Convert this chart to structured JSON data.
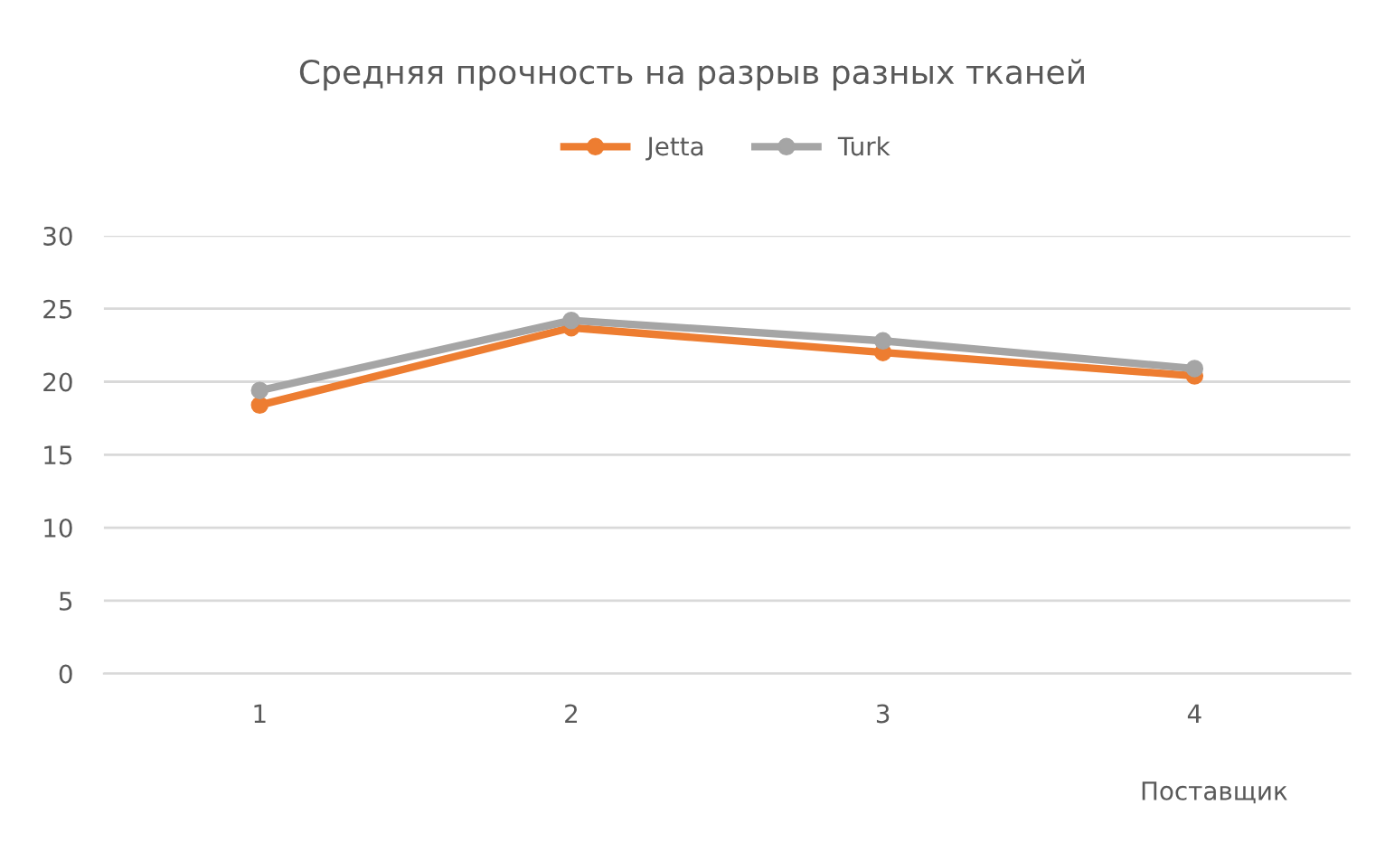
{
  "chart_data": {
    "type": "line",
    "title": "Средняя прочность на разрыв разных тканей",
    "xlabel": "Поставщик",
    "categories": [
      "1",
      "2",
      "3",
      "4"
    ],
    "series": [
      {
        "name": "Jetta",
        "color": "#ed7d31",
        "values": [
          18.4,
          23.7,
          22.0,
          20.4
        ]
      },
      {
        "name": "Turk",
        "color": "#a5a5a5",
        "values": [
          19.4,
          24.2,
          22.8,
          20.9
        ]
      }
    ],
    "ylim": [
      0,
      30
    ],
    "yticks": [
      0,
      5,
      10,
      15,
      20,
      25,
      30
    ],
    "grid": "y",
    "legend": "top",
    "marker": "circle",
    "line_style": "solid"
  }
}
